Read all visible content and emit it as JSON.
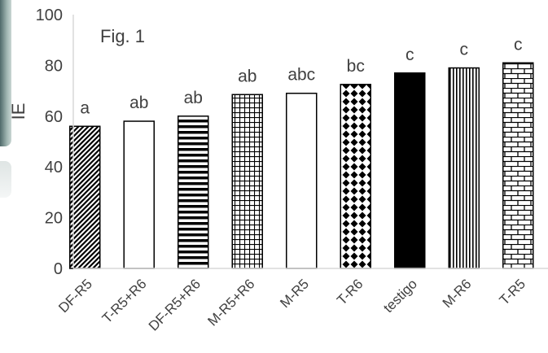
{
  "chart_data": {
    "type": "bar",
    "title": "Fig. 1",
    "xlabel": "",
    "ylabel": "IE",
    "ylim": [
      0,
      100
    ],
    "yticks": [
      0,
      20,
      40,
      60,
      80,
      100
    ],
    "grid": false,
    "legend": "none",
    "categories": [
      "DF-R5",
      "T-R5+R6",
      "DF-R5+R6",
      "M-R5+R6",
      "M-R5",
      "T-R6",
      "testigo",
      "M-R6",
      "T-R5"
    ],
    "values": [
      56,
      58,
      60,
      68.5,
      69,
      72.5,
      77,
      79,
      81
    ],
    "letters": [
      "a",
      "ab",
      "ab",
      "ab",
      "abc",
      "bc",
      "c",
      "c",
      "c"
    ],
    "patterns": [
      "diagonal-stripes",
      "white",
      "horizontal-stripes",
      "grid",
      "white",
      "diamond-dots",
      "solid-black",
      "vertical-stripes",
      "brick"
    ]
  }
}
